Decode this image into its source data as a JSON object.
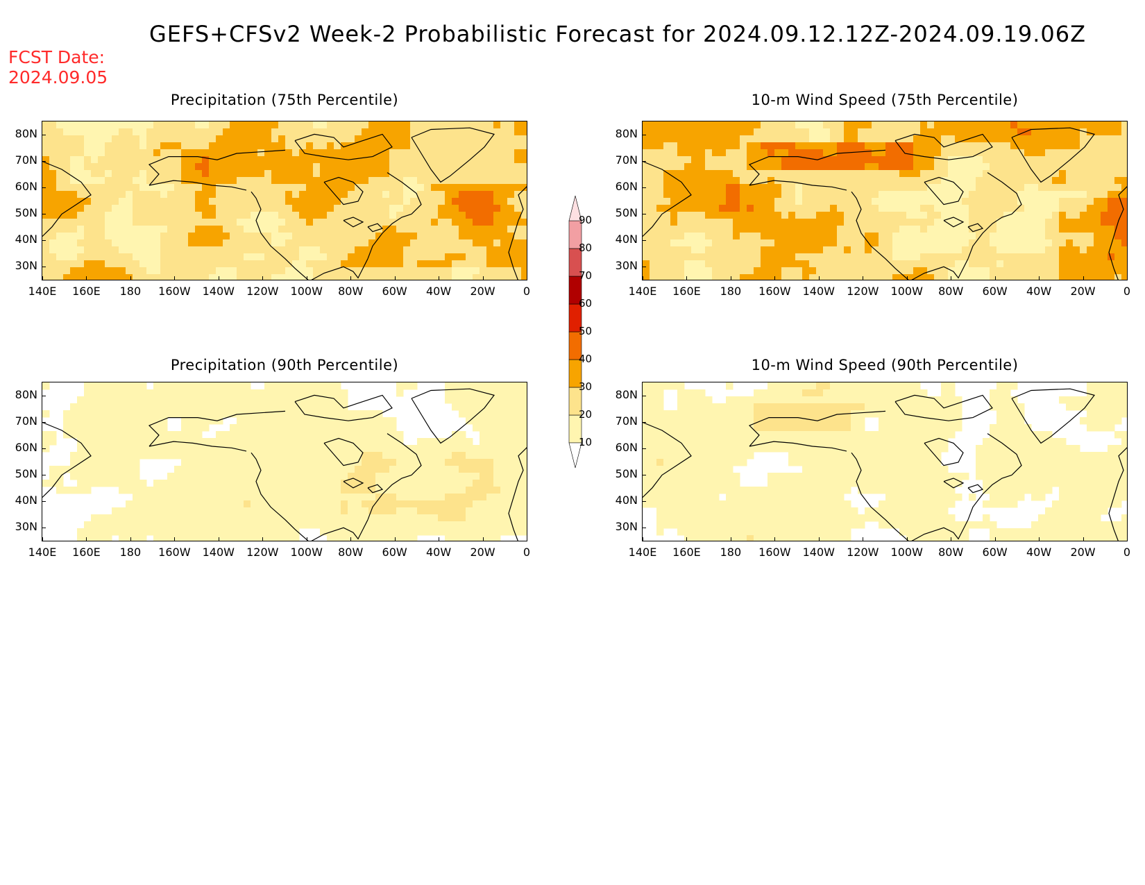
{
  "title": "GEFS+CFSv2 Week-2 Probabilistic Forecast for 2024.09.12.12Z-2024.09.19.06Z",
  "fcst_date": {
    "label": "FCST Date:",
    "value": "2024.09.05"
  },
  "panels": [
    {
      "id": "precip75",
      "title": "Precipitation (75th Percentile)",
      "variable": "precipitation",
      "percentile": 75,
      "intensity": "high"
    },
    {
      "id": "wind75",
      "title": "10-m Wind Speed (75th Percentile)",
      "variable": "wind",
      "percentile": 75,
      "intensity": "high"
    },
    {
      "id": "precip90",
      "title": "Precipitation (90th Percentile)",
      "variable": "precipitation",
      "percentile": 90,
      "intensity": "low"
    },
    {
      "id": "wind90",
      "title": "10-m Wind Speed (90th Percentile)",
      "variable": "wind",
      "percentile": 90,
      "intensity": "low"
    }
  ],
  "lat_labels": [
    "80N",
    "70N",
    "60N",
    "50N",
    "40N",
    "30N"
  ],
  "lon_labels": [
    "140E",
    "160E",
    "180",
    "160W",
    "140W",
    "120W",
    "100W",
    "80W",
    "60W",
    "40W",
    "20W",
    "0"
  ],
  "colorbar": {
    "levels": [
      "10",
      "20",
      "30",
      "40",
      "50",
      "60",
      "70",
      "80",
      "90"
    ],
    "colors": [
      "#fff5b0",
      "#fde38c",
      "#f7a400",
      "#f26d00",
      "#e02000",
      "#b00000",
      "#d85050",
      "#f29fa3",
      "#fde0e2"
    ]
  },
  "colors": {
    "coast": "#000000",
    "fcst_text": "#ff2a2a"
  }
}
